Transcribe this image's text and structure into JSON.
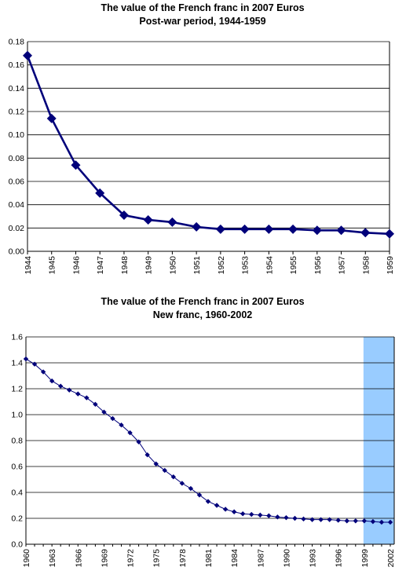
{
  "colors": {
    "series": "#00007a",
    "highlight": "#99ccff",
    "grid": "#000000"
  },
  "chart_data": [
    {
      "type": "line",
      "title": "The value of the French franc in 2007 Euros",
      "subtitle": "Post-war period, 1944-1959",
      "xlabel": "",
      "ylabel": "",
      "ylim": [
        0,
        0.18
      ],
      "yticks": [
        "0.00",
        "0.02",
        "0.04",
        "0.06",
        "0.08",
        "0.10",
        "0.12",
        "0.14",
        "0.16",
        "0.18"
      ],
      "grid": true,
      "marker": "diamond",
      "categories": [
        "1944",
        "1945",
        "1946",
        "1947",
        "1948",
        "1949",
        "1950",
        "1951",
        "1952",
        "1953",
        "1954",
        "1955",
        "1956",
        "1957",
        "1958",
        "1959"
      ],
      "values": [
        0.168,
        0.114,
        0.074,
        0.05,
        0.031,
        0.027,
        0.025,
        0.021,
        0.019,
        0.019,
        0.019,
        0.019,
        0.018,
        0.018,
        0.016,
        0.015
      ]
    },
    {
      "type": "line",
      "title": "The value of the French franc in 2007 Euros",
      "subtitle": "New franc, 1960-2002",
      "xlabel": "",
      "ylabel": "",
      "ylim": [
        0,
        1.6
      ],
      "yticks": [
        "0.0",
        "0.2",
        "0.4",
        "0.6",
        "0.8",
        "1.0",
        "1.2",
        "1.4",
        "1.6"
      ],
      "grid": true,
      "marker": "diamond",
      "xtick_labels": [
        "1960",
        "1963",
        "1966",
        "1969",
        "1972",
        "1975",
        "1978",
        "1981",
        "1984",
        "1987",
        "1990",
        "1993",
        "1996",
        "1999",
        "2002"
      ],
      "highlight_range": [
        1999,
        2002
      ],
      "x": [
        1960,
        1961,
        1962,
        1963,
        1964,
        1965,
        1966,
        1967,
        1968,
        1969,
        1970,
        1971,
        1972,
        1973,
        1974,
        1975,
        1976,
        1977,
        1978,
        1979,
        1980,
        1981,
        1982,
        1983,
        1984,
        1985,
        1986,
        1987,
        1988,
        1989,
        1990,
        1991,
        1992,
        1993,
        1994,
        1995,
        1996,
        1997,
        1998,
        1999,
        2000,
        2001,
        2002
      ],
      "values": [
        1.43,
        1.39,
        1.33,
        1.26,
        1.22,
        1.19,
        1.16,
        1.13,
        1.08,
        1.02,
        0.97,
        0.92,
        0.86,
        0.79,
        0.69,
        0.62,
        0.57,
        0.52,
        0.47,
        0.43,
        0.38,
        0.33,
        0.3,
        0.27,
        0.25,
        0.235,
        0.23,
        0.225,
        0.22,
        0.21,
        0.205,
        0.2,
        0.195,
        0.19,
        0.19,
        0.19,
        0.185,
        0.18,
        0.18,
        0.18,
        0.175,
        0.17,
        0.17
      ]
    }
  ]
}
